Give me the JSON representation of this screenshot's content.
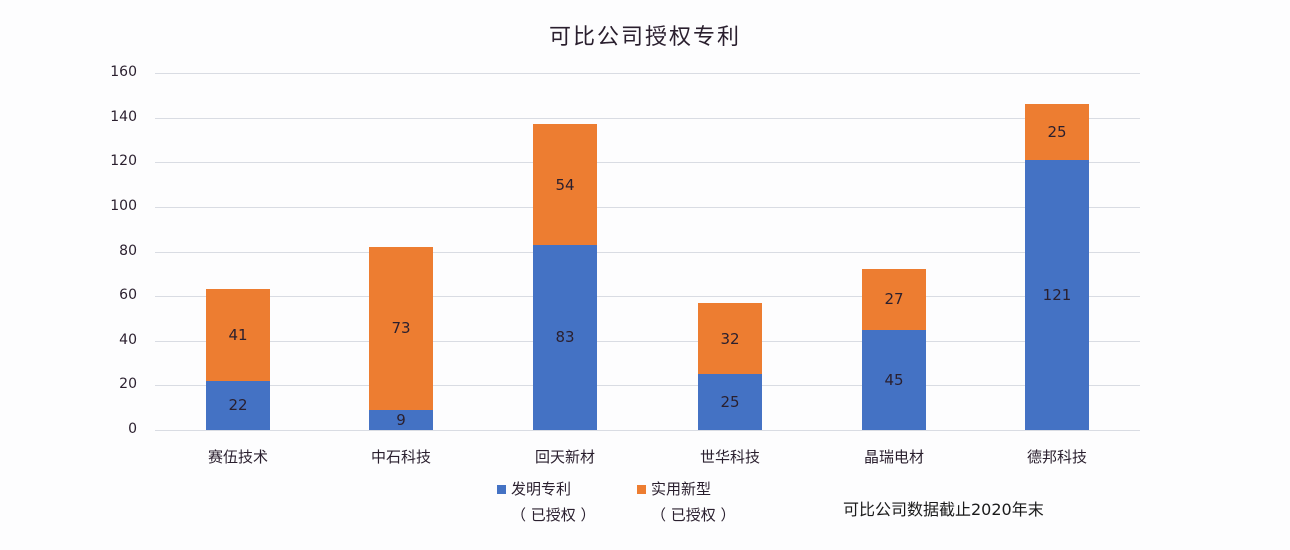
{
  "chart_data": {
    "type": "bar",
    "stacked": true,
    "title": "可比公司授权专利",
    "xlabel": "",
    "ylabel": "",
    "ylim": [
      0,
      160
    ],
    "yticks": [
      0,
      20,
      40,
      60,
      80,
      100,
      120,
      140,
      160
    ],
    "grid": true,
    "legend_position": "bottom",
    "categories": [
      "赛伍技术",
      "中石科技",
      "回天新材",
      "世华科技",
      "晶瑞电材",
      "德邦科技"
    ],
    "series": [
      {
        "name": "发明专利（已授权）",
        "color": "#4472c4",
        "values": [
          22,
          9,
          83,
          25,
          45,
          121
        ]
      },
      {
        "name": "实用新型（已授权）",
        "color": "#ed7d31",
        "values": [
          41,
          73,
          54,
          32,
          27,
          25
        ]
      }
    ],
    "annotation": "可比公司数据截止2020年末"
  },
  "legend": {
    "items": [
      {
        "label": "发明专利",
        "sub": "（ 已授权 ）",
        "color": "#4472c4"
      },
      {
        "label": "实用新型",
        "sub": "（ 已授权 ）",
        "color": "#ed7d31"
      }
    ]
  }
}
